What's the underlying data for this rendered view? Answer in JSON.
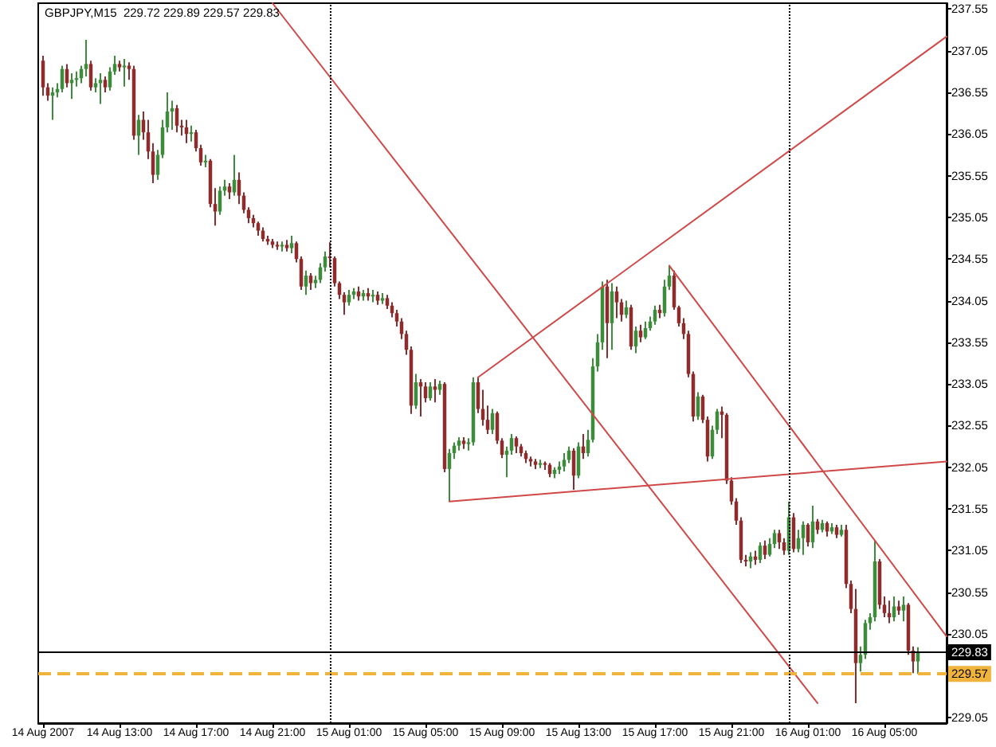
{
  "chart_data": {
    "type": "candlestick",
    "title": "GBPJPY,M15  229.72 229.89 229.57 229.83",
    "xlim": [
      "2007-08-14T08:45",
      "2007-08-16T08:15"
    ],
    "xticks": [
      {
        "value": "2007-08-14T09:00",
        "label": "14 Aug 2007"
      },
      {
        "value": "2007-08-14T13:00",
        "label": "14 Aug 13:00"
      },
      {
        "value": "2007-08-14T17:00",
        "label": "14 Aug 17:00"
      },
      {
        "value": "2007-08-14T21:00",
        "label": "14 Aug 21:00"
      },
      {
        "value": "2007-08-15T01:00",
        "label": "15 Aug 01:00"
      },
      {
        "value": "2007-08-15T05:00",
        "label": "15 Aug 05:00"
      },
      {
        "value": "2007-08-15T09:00",
        "label": "15 Aug 09:00"
      },
      {
        "value": "2007-08-15T13:00",
        "label": "15 Aug 13:00"
      },
      {
        "value": "2007-08-15T17:00",
        "label": "15 Aug 17:00"
      },
      {
        "value": "2007-08-15T21:00",
        "label": "15 Aug 21:00"
      },
      {
        "value": "2007-08-16T01:00",
        "label": "16 Aug 01:00"
      },
      {
        "value": "2007-08-16T05:00",
        "label": "16 Aug 05:00"
      }
    ],
    "ylim": [
      228.98,
      237.62
    ],
    "yticks": [
      229.05,
      {
        "value": 229.55,
        "label": null
      },
      230.05,
      230.55,
      231.05,
      231.55,
      232.05,
      232.55,
      233.05,
      233.55,
      234.05,
      234.55,
      235.05,
      235.55,
      236.05,
      236.55,
      237.05,
      237.55
    ],
    "marker": "none",
    "series": [
      {
        "x": [
          "2007-08-14T09:00",
          "2007-08-14T09:15",
          "2007-08-14T09:30",
          "2007-08-14T09:45",
          "2007-08-14T10:00",
          "2007-08-14T10:15",
          "2007-08-14T10:30",
          "2007-08-14T10:45",
          "2007-08-14T11:00",
          "2007-08-14T11:15",
          "2007-08-14T11:30",
          "2007-08-14T11:45",
          "2007-08-14T12:00",
          "2007-08-14T12:15",
          "2007-08-14T12:30",
          "2007-08-14T12:45",
          "2007-08-14T13:00",
          "2007-08-14T13:15",
          "2007-08-14T13:30",
          "2007-08-14T13:45",
          "2007-08-14T14:00",
          "2007-08-14T14:15",
          "2007-08-14T14:30",
          "2007-08-14T14:45",
          "2007-08-14T15:00",
          "2007-08-14T15:15",
          "2007-08-14T15:30",
          "2007-08-14T15:45",
          "2007-08-14T16:00",
          "2007-08-14T16:15",
          "2007-08-14T16:30",
          "2007-08-14T16:45",
          "2007-08-14T17:00",
          "2007-08-14T17:15",
          "2007-08-14T17:30",
          "2007-08-14T17:45",
          "2007-08-14T18:00",
          "2007-08-14T18:15",
          "2007-08-14T18:30",
          "2007-08-14T18:45",
          "2007-08-14T19:00",
          "2007-08-14T19:15",
          "2007-08-14T19:30",
          "2007-08-14T19:45",
          "2007-08-14T20:00",
          "2007-08-14T20:15",
          "2007-08-14T20:30",
          "2007-08-14T20:45",
          "2007-08-14T21:00",
          "2007-08-14T21:15",
          "2007-08-14T21:30",
          "2007-08-14T21:45",
          "2007-08-14T22:00",
          "2007-08-14T22:15",
          "2007-08-14T22:30",
          "2007-08-14T22:45",
          "2007-08-14T23:00",
          "2007-08-14T23:15",
          "2007-08-14T23:30",
          "2007-08-14T23:45",
          "2007-08-15T00:00",
          "2007-08-15T00:15",
          "2007-08-15T00:30",
          "2007-08-15T00:45",
          "2007-08-15T01:00",
          "2007-08-15T01:15",
          "2007-08-15T01:30",
          "2007-08-15T01:45",
          "2007-08-15T02:00",
          "2007-08-15T02:15",
          "2007-08-15T02:30",
          "2007-08-15T02:45",
          "2007-08-15T03:00",
          "2007-08-15T03:15",
          "2007-08-15T03:30",
          "2007-08-15T03:45",
          "2007-08-15T04:00",
          "2007-08-15T04:15",
          "2007-08-15T04:30",
          "2007-08-15T04:45",
          "2007-08-15T05:00",
          "2007-08-15T05:15",
          "2007-08-15T05:30",
          "2007-08-15T05:45",
          "2007-08-15T06:00",
          "2007-08-15T06:15",
          "2007-08-15T06:30",
          "2007-08-15T06:45",
          "2007-08-15T07:00",
          "2007-08-15T07:15",
          "2007-08-15T07:30",
          "2007-08-15T07:45",
          "2007-08-15T08:00",
          "2007-08-15T08:15",
          "2007-08-15T08:30",
          "2007-08-15T08:45",
          "2007-08-15T09:00",
          "2007-08-15T09:15",
          "2007-08-15T09:30",
          "2007-08-15T09:45",
          "2007-08-15T10:00",
          "2007-08-15T10:15",
          "2007-08-15T10:30",
          "2007-08-15T10:45",
          "2007-08-15T11:00",
          "2007-08-15T11:15",
          "2007-08-15T11:30",
          "2007-08-15T11:45",
          "2007-08-15T12:00",
          "2007-08-15T12:15",
          "2007-08-15T12:30",
          "2007-08-15T12:45",
          "2007-08-15T13:00",
          "2007-08-15T13:15",
          "2007-08-15T13:30",
          "2007-08-15T13:45",
          "2007-08-15T14:00",
          "2007-08-15T14:15",
          "2007-08-15T14:30",
          "2007-08-15T14:45",
          "2007-08-15T15:00",
          "2007-08-15T15:15",
          "2007-08-15T15:30",
          "2007-08-15T15:45",
          "2007-08-15T16:00",
          "2007-08-15T16:15",
          "2007-08-15T16:30",
          "2007-08-15T16:45",
          "2007-08-15T17:00",
          "2007-08-15T17:15",
          "2007-08-15T17:30",
          "2007-08-15T17:45",
          "2007-08-15T18:00",
          "2007-08-15T18:15",
          "2007-08-15T18:30",
          "2007-08-15T18:45",
          "2007-08-15T19:00",
          "2007-08-15T19:15",
          "2007-08-15T19:30",
          "2007-08-15T19:45",
          "2007-08-15T20:00",
          "2007-08-15T20:15",
          "2007-08-15T20:30",
          "2007-08-15T20:45",
          "2007-08-15T21:00",
          "2007-08-15T21:15",
          "2007-08-15T21:30",
          "2007-08-15T21:45",
          "2007-08-15T22:00",
          "2007-08-15T22:15",
          "2007-08-15T22:30",
          "2007-08-15T22:45",
          "2007-08-15T23:00",
          "2007-08-15T23:15",
          "2007-08-15T23:30",
          "2007-08-15T23:45",
          "2007-08-16T00:00",
          "2007-08-16T00:15",
          "2007-08-16T00:30",
          "2007-08-16T00:45",
          "2007-08-16T01:00",
          "2007-08-16T01:15",
          "2007-08-16T01:30",
          "2007-08-16T01:45",
          "2007-08-16T02:00",
          "2007-08-16T02:15",
          "2007-08-16T02:30",
          "2007-08-16T02:45",
          "2007-08-16T03:00",
          "2007-08-16T03:15",
          "2007-08-16T03:30",
          "2007-08-16T03:45",
          "2007-08-16T04:00",
          "2007-08-16T04:15",
          "2007-08-16T04:30",
          "2007-08-16T04:45",
          "2007-08-16T05:00",
          "2007-08-16T05:15",
          "2007-08-16T05:30",
          "2007-08-16T05:45",
          "2007-08-16T06:00",
          "2007-08-16T06:15",
          "2007-08-16T06:30",
          "2007-08-16T06:45"
        ],
        "ohlc": [
          [
            236.93,
            236.99,
            236.51,
            236.61
          ],
          [
            236.61,
            236.66,
            236.45,
            236.51
          ],
          [
            236.51,
            236.61,
            236.22,
            236.55
          ],
          [
            236.55,
            236.66,
            236.49,
            236.59
          ],
          [
            236.59,
            236.87,
            236.55,
            236.83
          ],
          [
            236.83,
            236.89,
            236.61,
            236.66
          ],
          [
            236.66,
            236.78,
            236.47,
            236.7
          ],
          [
            236.7,
            236.8,
            236.62,
            236.72
          ],
          [
            236.72,
            236.87,
            236.66,
            236.83
          ],
          [
            236.83,
            237.18,
            236.74,
            236.89
          ],
          [
            236.89,
            236.93,
            236.57,
            236.61
          ],
          [
            236.61,
            236.72,
            236.55,
            236.66
          ],
          [
            236.66,
            236.78,
            236.41,
            236.7
          ],
          [
            236.7,
            236.74,
            236.55,
            236.61
          ],
          [
            236.61,
            236.85,
            236.57,
            236.8
          ],
          [
            236.8,
            236.99,
            236.76,
            236.89
          ],
          [
            236.89,
            236.93,
            236.8,
            236.85
          ],
          [
            236.85,
            236.95,
            236.62,
            236.87
          ],
          [
            236.87,
            236.91,
            236.7,
            236.83
          ],
          [
            236.83,
            236.87,
            235.98,
            236.03
          ],
          [
            236.03,
            236.28,
            235.8,
            236.22
          ],
          [
            236.22,
            236.32,
            235.98,
            236.07
          ],
          [
            236.07,
            236.22,
            235.75,
            235.84
          ],
          [
            235.84,
            235.94,
            235.46,
            235.56
          ],
          [
            235.56,
            235.86,
            235.5,
            235.8
          ],
          [
            235.8,
            236.22,
            235.76,
            236.13
          ],
          [
            236.13,
            236.55,
            236.07,
            236.32
          ],
          [
            236.32,
            236.45,
            236.1,
            236.36
          ],
          [
            236.36,
            236.4,
            236.07,
            236.15
          ],
          [
            236.15,
            236.22,
            236.03,
            236.13
          ],
          [
            236.13,
            236.22,
            235.94,
            236.05
          ],
          [
            236.05,
            236.15,
            235.96,
            236.07
          ],
          [
            236.07,
            236.1,
            235.84,
            235.88
          ],
          [
            235.88,
            235.92,
            235.67,
            235.71
          ],
          [
            235.71,
            235.8,
            235.65,
            235.73
          ],
          [
            235.73,
            235.75,
            235.17,
            235.21
          ],
          [
            235.21,
            235.4,
            234.95,
            235.12
          ],
          [
            235.12,
            235.42,
            235.08,
            235.37
          ],
          [
            235.37,
            235.5,
            235.31,
            235.42
          ],
          [
            235.42,
            235.46,
            235.27,
            235.35
          ],
          [
            235.35,
            235.8,
            235.31,
            235.5
          ],
          [
            235.5,
            235.59,
            235.21,
            235.31
          ],
          [
            235.31,
            235.35,
            235.1,
            235.14
          ],
          [
            235.14,
            235.17,
            234.98,
            235.04
          ],
          [
            235.04,
            235.08,
            234.93,
            234.98
          ],
          [
            234.98,
            235.0,
            234.83,
            234.89
          ],
          [
            234.89,
            234.93,
            234.76,
            234.79
          ],
          [
            234.79,
            234.83,
            234.72,
            234.76
          ],
          [
            234.76,
            234.79,
            234.68,
            234.72
          ],
          [
            234.72,
            234.76,
            234.66,
            234.7
          ],
          [
            234.7,
            234.76,
            234.64,
            234.72
          ],
          [
            234.72,
            234.78,
            234.64,
            234.68
          ],
          [
            234.68,
            234.83,
            234.62,
            234.74
          ],
          [
            234.74,
            234.76,
            234.51,
            234.55
          ],
          [
            234.55,
            234.58,
            234.18,
            234.22
          ],
          [
            234.22,
            234.41,
            234.12,
            234.35
          ],
          [
            234.35,
            234.38,
            234.18,
            234.26
          ],
          [
            234.26,
            234.35,
            234.2,
            234.3
          ],
          [
            234.3,
            234.5,
            234.26,
            234.45
          ],
          [
            234.45,
            234.64,
            234.4,
            234.58
          ],
          [
            234.58,
            234.75,
            234.45,
            234.56
          ],
          [
            234.56,
            234.58,
            234.22,
            234.26
          ],
          [
            234.26,
            234.28,
            234.07,
            234.12
          ],
          [
            234.12,
            234.15,
            233.88,
            234.03
          ],
          [
            234.03,
            234.18,
            233.99,
            234.12
          ],
          [
            234.12,
            234.2,
            234.07,
            234.16
          ],
          [
            234.16,
            234.22,
            234.05,
            234.1
          ],
          [
            234.1,
            234.18,
            234.05,
            234.14
          ],
          [
            234.14,
            234.2,
            234.05,
            234.1
          ],
          [
            234.1,
            234.18,
            234.03,
            234.12
          ],
          [
            234.12,
            234.16,
            234.0,
            234.05
          ],
          [
            234.05,
            234.14,
            234.01,
            234.08
          ],
          [
            234.08,
            234.12,
            233.95,
            233.99
          ],
          [
            233.99,
            234.03,
            233.85,
            233.9
          ],
          [
            233.9,
            233.94,
            233.74,
            233.8
          ],
          [
            233.8,
            233.84,
            233.59,
            233.65
          ],
          [
            233.65,
            233.69,
            233.4,
            233.46
          ],
          [
            233.46,
            233.5,
            232.69,
            232.79
          ],
          [
            232.79,
            233.17,
            232.75,
            233.07
          ],
          [
            233.07,
            233.11,
            232.66,
            233.02
          ],
          [
            233.02,
            233.07,
            232.83,
            232.88
          ],
          [
            232.88,
            233.07,
            232.85,
            233.02
          ],
          [
            233.02,
            233.11,
            232.83,
            232.98
          ],
          [
            232.98,
            233.09,
            232.92,
            233.05
          ],
          [
            233.05,
            233.07,
            231.99,
            232.03
          ],
          [
            232.03,
            232.27,
            231.64,
            232.22
          ],
          [
            232.22,
            232.35,
            232.15,
            232.31
          ],
          [
            232.31,
            232.41,
            232.25,
            232.37
          ],
          [
            232.37,
            232.41,
            232.27,
            232.33
          ],
          [
            232.33,
            232.4,
            232.25,
            232.35
          ],
          [
            232.35,
            233.13,
            232.31,
            233.07
          ],
          [
            233.07,
            233.13,
            232.7,
            232.75
          ],
          [
            232.75,
            232.98,
            232.55,
            232.62
          ],
          [
            232.62,
            232.79,
            232.45,
            232.5
          ],
          [
            232.5,
            232.75,
            232.45,
            232.7
          ],
          [
            232.7,
            232.72,
            232.33,
            232.37
          ],
          [
            232.37,
            232.4,
            232.16,
            232.2
          ],
          [
            232.2,
            232.3,
            231.93,
            232.25
          ],
          [
            232.25,
            232.45,
            232.2,
            232.4
          ],
          [
            232.4,
            232.42,
            232.22,
            232.3
          ],
          [
            232.3,
            232.33,
            232.18,
            232.22
          ],
          [
            232.22,
            232.25,
            232.1,
            232.15
          ],
          [
            232.15,
            232.18,
            232.06,
            232.12
          ],
          [
            232.12,
            232.15,
            232.03,
            232.08
          ],
          [
            232.08,
            232.14,
            232.04,
            232.1
          ],
          [
            232.1,
            232.12,
            232.02,
            232.08
          ],
          [
            232.08,
            232.1,
            231.93,
            231.97
          ],
          [
            231.97,
            232.05,
            231.92,
            232.02
          ],
          [
            232.02,
            232.12,
            231.97,
            232.06
          ],
          [
            232.06,
            232.22,
            232.0,
            232.14
          ],
          [
            232.14,
            232.3,
            232.1,
            232.25
          ],
          [
            232.25,
            232.28,
            231.78,
            231.95
          ],
          [
            231.95,
            232.35,
            231.92,
            232.3
          ],
          [
            232.3,
            232.45,
            232.15,
            232.22
          ],
          [
            232.22,
            232.5,
            232.18,
            232.38
          ],
          [
            232.38,
            233.36,
            232.35,
            233.26
          ],
          [
            233.26,
            233.65,
            233.2,
            233.55
          ],
          [
            233.55,
            234.28,
            233.46,
            234.22
          ],
          [
            234.22,
            234.3,
            233.36,
            233.78
          ],
          [
            233.78,
            234.26,
            233.46,
            234.16
          ],
          [
            234.16,
            234.22,
            233.84,
            234.03
          ],
          [
            234.03,
            234.07,
            233.8,
            233.88
          ],
          [
            233.88,
            234.05,
            233.84,
            233.97
          ],
          [
            233.97,
            234.0,
            233.46,
            233.5
          ],
          [
            233.5,
            233.74,
            233.42,
            233.69
          ],
          [
            233.69,
            233.76,
            233.55,
            233.61
          ],
          [
            233.61,
            233.8,
            233.59,
            233.72
          ],
          [
            233.72,
            233.86,
            233.69,
            233.8
          ],
          [
            233.8,
            233.99,
            233.76,
            233.94
          ],
          [
            233.94,
            234.0,
            233.84,
            233.9
          ],
          [
            233.9,
            234.3,
            233.86,
            234.22
          ],
          [
            234.22,
            234.47,
            234.18,
            234.35
          ],
          [
            234.35,
            234.41,
            233.94,
            233.97
          ],
          [
            233.97,
            233.99,
            233.74,
            233.78
          ],
          [
            233.78,
            233.84,
            233.59,
            233.65
          ],
          [
            233.65,
            233.69,
            233.13,
            233.17
          ],
          [
            233.17,
            233.2,
            232.6,
            232.66
          ],
          [
            232.66,
            232.95,
            232.62,
            232.9
          ],
          [
            232.9,
            232.92,
            232.58,
            232.62
          ],
          [
            232.62,
            232.66,
            232.12,
            232.18
          ],
          [
            232.18,
            232.55,
            232.15,
            232.5
          ],
          [
            232.5,
            232.75,
            232.45,
            232.72
          ],
          [
            232.72,
            232.78,
            232.4,
            232.68
          ],
          [
            232.68,
            232.7,
            231.85,
            231.89
          ],
          [
            231.89,
            231.93,
            231.6,
            231.64
          ],
          [
            231.64,
            231.68,
            231.36,
            231.41
          ],
          [
            231.41,
            231.45,
            230.9,
            230.94
          ],
          [
            230.94,
            231.0,
            230.86,
            230.92
          ],
          [
            230.92,
            231.03,
            230.84,
            230.98
          ],
          [
            230.98,
            231.05,
            230.88,
            230.94
          ],
          [
            230.94,
            231.15,
            230.9,
            231.11
          ],
          [
            231.11,
            231.17,
            230.95,
            231.0
          ],
          [
            231.0,
            231.2,
            230.98,
            231.13
          ],
          [
            231.13,
            231.3,
            231.08,
            231.26
          ],
          [
            231.26,
            231.3,
            231.07,
            231.15
          ],
          [
            231.15,
            231.2,
            231.0,
            231.05
          ],
          [
            231.05,
            231.64,
            231.0,
            231.45
          ],
          [
            231.45,
            231.5,
            231.03,
            231.07
          ],
          [
            231.07,
            231.3,
            231.03,
            231.2
          ],
          [
            231.2,
            231.4,
            231.0,
            231.36
          ],
          [
            231.36,
            231.38,
            231.1,
            231.15
          ],
          [
            231.15,
            231.59,
            231.08,
            231.4
          ],
          [
            231.4,
            231.43,
            231.25,
            231.3
          ],
          [
            231.3,
            231.42,
            231.27,
            231.38
          ],
          [
            231.38,
            231.4,
            231.22,
            231.28
          ],
          [
            231.28,
            231.38,
            231.25,
            231.33
          ],
          [
            231.33,
            231.36,
            231.2,
            231.24
          ],
          [
            231.24,
            231.36,
            231.22,
            231.3
          ],
          [
            231.3,
            231.36,
            230.6,
            230.65
          ],
          [
            230.65,
            230.69,
            230.3,
            230.35
          ],
          [
            230.35,
            230.59,
            229.22,
            229.7
          ],
          [
            229.7,
            229.9,
            229.6,
            229.8
          ],
          [
            229.8,
            230.22,
            229.75,
            230.18
          ],
          [
            230.18,
            230.3,
            230.1,
            230.25
          ],
          [
            230.25,
            231.17,
            230.2,
            230.92
          ],
          [
            230.92,
            230.95,
            230.35,
            230.4
          ],
          [
            230.4,
            230.5,
            230.25,
            230.3
          ],
          [
            230.3,
            230.45,
            230.18,
            230.25
          ],
          [
            230.25,
            230.5,
            230.2,
            230.38
          ],
          [
            230.38,
            230.45,
            230.28,
            230.33
          ],
          [
            230.33,
            230.5,
            230.2,
            230.4
          ],
          [
            230.4,
            230.42,
            229.8,
            229.85
          ],
          [
            229.85,
            229.9,
            229.58,
            229.72
          ],
          [
            229.72,
            229.89,
            229.57,
            229.83
          ]
        ],
        "colors": [
          "#8c2c2c",
          "#8c2c2c",
          "#3c8c3c",
          "#3c8c3c",
          "#3c8c3c",
          "#8c2c2c",
          "#3c8c3c",
          "#3c8c3c",
          "#3c8c3c",
          "#3c8c3c",
          "#8c2c2c",
          "#3c8c3c",
          "#3c8c3c",
          "#8c2c2c",
          "#3c8c3c",
          "#3c8c3c",
          "#8c2c2c",
          "#3c8c3c",
          "#8c2c2c",
          "#8c2c2c",
          "#3c8c3c",
          "#8c2c2c",
          "#8c2c2c",
          "#8c2c2c",
          "#3c8c3c",
          "#3c8c3c",
          "#3c8c3c",
          "#3c8c3c",
          "#8c2c2c",
          "#8c2c2c",
          "#8c2c2c",
          "#3c8c3c",
          "#8c2c2c",
          "#8c2c2c",
          "#3c8c3c",
          "#8c2c2c",
          "#8c2c2c",
          "#3c8c3c",
          "#3c8c3c",
          "#8c2c2c",
          "#3c8c3c",
          "#8c2c2c",
          "#8c2c2c",
          "#8c2c2c",
          "#8c2c2c",
          "#8c2c2c",
          "#8c2c2c",
          "#8c2c2c",
          "#8c2c2c",
          "#8c2c2c",
          "#3c8c3c",
          "#8c2c2c",
          "#3c8c3c",
          "#8c2c2c",
          "#8c2c2c",
          "#3c8c3c",
          "#8c2c2c",
          "#3c8c3c",
          "#3c8c3c",
          "#3c8c3c",
          "#8c2c2c",
          "#8c2c2c",
          "#8c2c2c",
          "#8c2c2c",
          "#3c8c3c",
          "#3c8c3c",
          "#8c2c2c",
          "#3c8c3c",
          "#8c2c2c",
          "#3c8c3c",
          "#8c2c2c",
          "#3c8c3c",
          "#8c2c2c",
          "#8c2c2c",
          "#8c2c2c",
          "#8c2c2c",
          "#8c2c2c",
          "#8c2c2c",
          "#3c8c3c",
          "#8c2c2c",
          "#8c2c2c",
          "#3c8c3c",
          "#8c2c2c",
          "#3c8c3c",
          "#8c2c2c",
          "#3c8c3c",
          "#3c8c3c",
          "#3c8c3c",
          "#8c2c2c",
          "#3c8c3c",
          "#3c8c3c",
          "#8c2c2c",
          "#8c2c2c",
          "#8c2c2c",
          "#3c8c3c",
          "#8c2c2c",
          "#8c2c2c",
          "#3c8c3c",
          "#3c8c3c",
          "#8c2c2c",
          "#8c2c2c",
          "#8c2c2c",
          "#8c2c2c",
          "#8c2c2c",
          "#3c8c3c",
          "#8c2c2c",
          "#8c2c2c",
          "#3c8c3c",
          "#3c8c3c",
          "#3c8c3c",
          "#3c8c3c",
          "#8c2c2c",
          "#3c8c3c",
          "#8c2c2c",
          "#3c8c3c",
          "#3c8c3c",
          "#3c8c3c",
          "#3c8c3c",
          "#8c2c2c",
          "#3c8c3c",
          "#8c2c2c",
          "#8c2c2c",
          "#3c8c3c",
          "#8c2c2c",
          "#3c8c3c",
          "#8c2c2c",
          "#3c8c3c",
          "#3c8c3c",
          "#3c8c3c",
          "#8c2c2c",
          "#3c8c3c",
          "#3c8c3c",
          "#8c2c2c",
          "#8c2c2c",
          "#8c2c2c",
          "#8c2c2c",
          "#8c2c2c",
          "#3c8c3c",
          "#8c2c2c",
          "#8c2c2c",
          "#3c8c3c",
          "#3c8c3c",
          "#8c2c2c",
          "#8c2c2c",
          "#8c2c2c",
          "#8c2c2c",
          "#8c2c2c",
          "#8c2c2c",
          "#3c8c3c",
          "#8c2c2c",
          "#3c8c3c",
          "#8c2c2c",
          "#3c8c3c",
          "#3c8c3c",
          "#8c2c2c",
          "#8c2c2c",
          "#3c8c3c",
          "#8c2c2c",
          "#3c8c3c",
          "#3c8c3c",
          "#8c2c2c",
          "#3c8c3c",
          "#8c2c2c",
          "#3c8c3c",
          "#8c2c2c",
          "#3c8c3c",
          "#8c2c2c",
          "#3c8c3c",
          "#8c2c2c",
          "#8c2c2c",
          "#8c2c2c",
          "#3c8c3c",
          "#3c8c3c",
          "#3c8c3c",
          "#3c8c3c",
          "#8c2c2c",
          "#8c2c2c",
          "#8c2c2c",
          "#3c8c3c",
          "#8c2c2c",
          "#3c8c3c",
          "#8c2c2c",
          "#8c2c2c",
          "#3c8c3c"
        ]
      },
      {
        "type": "line",
        "color": "#d04848",
        "x": [
          "2007-08-14T21:00",
          "2007-08-16T01:30"
        ],
        "values": [
          237.62,
          229.22
        ]
      },
      {
        "type": "line",
        "color": "#d04848",
        "x": [
          "2007-08-15T17:45",
          "2007-08-16T08:15"
        ],
        "values": [
          234.47,
          230.02
        ]
      },
      {
        "type": "line",
        "color": "#d04848",
        "x": [
          "2007-08-15T07:45",
          "2007-08-16T08:15"
        ],
        "values": [
          233.13,
          237.22
        ]
      },
      {
        "type": "line",
        "color": "#d04848",
        "x": [
          "2007-08-15T06:15",
          "2007-08-16T08:15"
        ],
        "values": [
          231.64,
          232.12
        ]
      }
    ],
    "ref_lines": [
      {
        "axis": "y",
        "value": 229.83,
        "label": "229.83",
        "color": "#000000",
        "line_style": "solid"
      },
      {
        "axis": "y",
        "value": 229.57,
        "label": "229.57",
        "color": "#f0b43c",
        "line_style": "dashed"
      },
      {
        "axis": "x",
        "value": "2007-08-15T00:00",
        "color": "#000000",
        "line_style": "dotted"
      },
      {
        "axis": "x",
        "value": "2007-08-16T00:00",
        "color": "#000000",
        "line_style": "dotted"
      }
    ]
  }
}
